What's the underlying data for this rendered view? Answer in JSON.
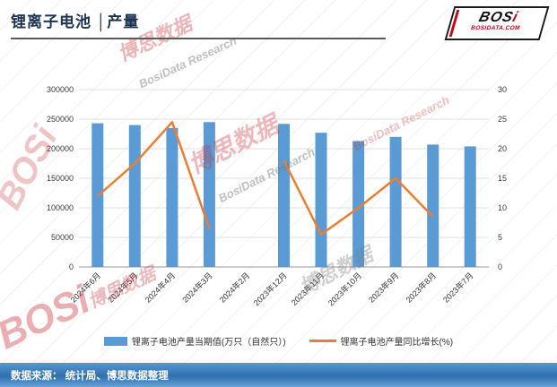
{
  "header": {
    "title": "锂离子电池 │产量"
  },
  "logo": {
    "main": "BOS",
    "accent": "i",
    "domain": "BOSIDATA.COM"
  },
  "watermarks": {
    "bosi": "BOSi",
    "cn": "博思数据",
    "en": "BosiData Research"
  },
  "footer": {
    "source": "数据来源： 统计局、博思数据整理"
  },
  "chart_data": {
    "type": "bar+line",
    "title": "锂离子电池 产量",
    "categories": [
      "2024年6月",
      "2024年5月",
      "2024年4月",
      "2024年3月",
      "2024年2月",
      "2023年12月",
      "2023年11月",
      "2023年10月",
      "2023年9月",
      "2023年8月",
      "2023年7月"
    ],
    "series": [
      {
        "name": "锂离子电池产量当期值(万只（自然只）)",
        "type": "bar",
        "axis": "left",
        "color": "#5b9bd5",
        "values": [
          243000,
          240000,
          235000,
          245000,
          null,
          242000,
          227000,
          213000,
          220000,
          207000,
          204000
        ]
      },
      {
        "name": "锂离子电池产量同比增长(%)",
        "type": "line",
        "axis": "right",
        "color": "#ed7d31",
        "values": [
          12,
          17.5,
          24.5,
          6.5,
          null,
          18,
          5.5,
          10,
          15,
          8.5,
          null
        ]
      }
    ],
    "y_left": {
      "min": 0,
      "max": 300000,
      "step": 50000
    },
    "y_right": {
      "min": 0,
      "max": 30,
      "step": 5
    },
    "grid": true,
    "legend_position": "bottom"
  }
}
